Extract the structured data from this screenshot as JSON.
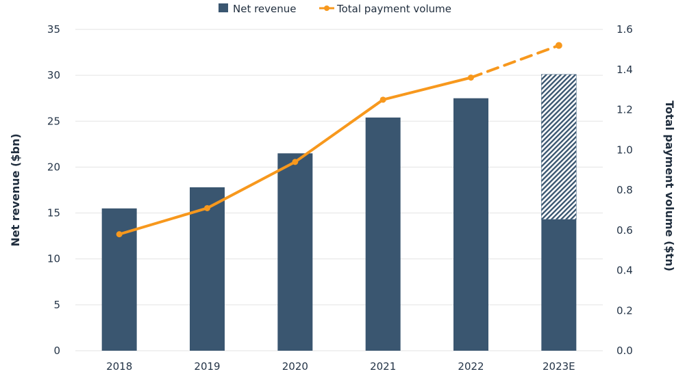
{
  "chart_data": {
    "type": "bar",
    "title": "",
    "categories": [
      "2018",
      "2019",
      "2020",
      "2021",
      "2022",
      "2023E"
    ],
    "series": [
      {
        "name": "Net revenue",
        "type": "bar",
        "axis": "left",
        "values": [
          15.5,
          17.8,
          21.5,
          25.4,
          27.5,
          30.1
        ],
        "actual_portion": [
          15.5,
          17.8,
          21.5,
          25.4,
          27.5,
          14.3
        ],
        "estimated_portion": [
          0,
          0,
          0,
          0,
          0,
          15.8
        ],
        "color": "#3a5670"
      },
      {
        "name": "Total payment volume",
        "type": "line",
        "axis": "right",
        "values": [
          0.58,
          0.71,
          0.94,
          1.25,
          1.36,
          1.52
        ],
        "dashed_from_index": 4,
        "color": "#f7981d"
      }
    ],
    "ylabel": "Net revenue ($bn)",
    "ylim": [
      0,
      35
    ],
    "yticks": [
      "0",
      "5",
      "10",
      "15",
      "20",
      "25",
      "30",
      "35"
    ],
    "y2label": "Total payment volume ($tn)",
    "y2lim": [
      0,
      1.6
    ],
    "y2ticks": [
      "0.0",
      "0.2",
      "0.4",
      "0.6",
      "0.8",
      "1.0",
      "1.2",
      "1.4",
      "1.6"
    ],
    "grid": true,
    "legend": {
      "position": "top-center",
      "entries": [
        {
          "label": "Net revenue",
          "marker": "square",
          "color": "#3a5670"
        },
        {
          "label": "Total payment volume",
          "marker": "line-dot",
          "color": "#f7981d"
        }
      ]
    }
  }
}
